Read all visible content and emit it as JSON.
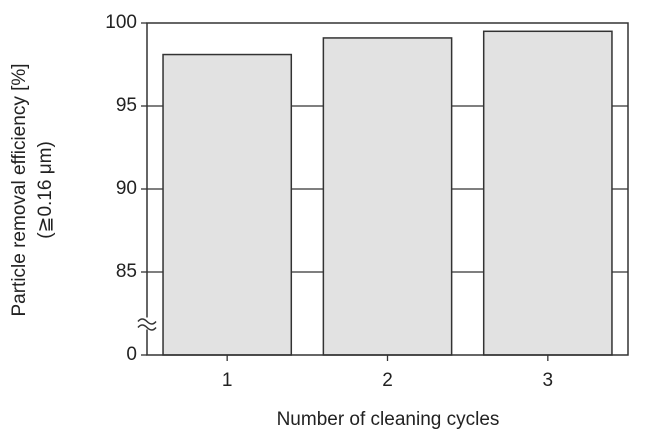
{
  "chart_data": {
    "type": "bar",
    "y_label_lines": [
      "Particle removal efficiency [%]",
      "(≧0.16 μm)"
    ],
    "x_label": "Number of cleaning cycles",
    "categories": [
      "1",
      "2",
      "3"
    ],
    "values": [
      98.1,
      99.1,
      99.5
    ],
    "color": "#e2e2e2",
    "ylim": [
      0,
      100
    ],
    "yticks": [
      0,
      85,
      90,
      95,
      100
    ],
    "axis_break": true,
    "grid": true
  }
}
